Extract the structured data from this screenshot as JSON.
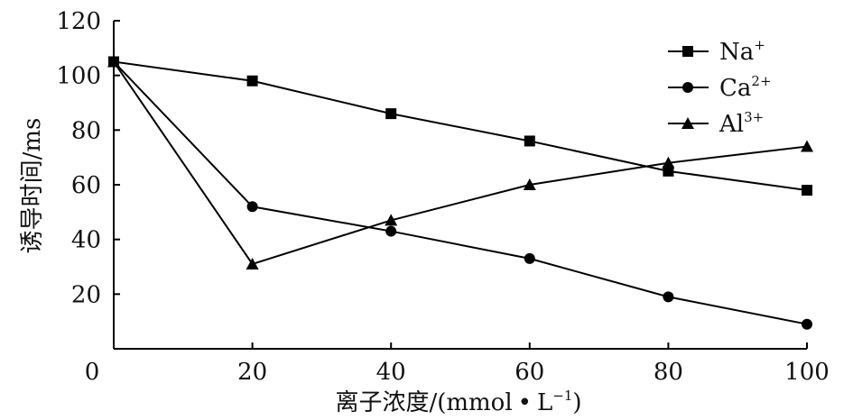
{
  "chart_data": {
    "type": "line",
    "xlabel_main": "离子浓度/(mmol",
    "xlabel_dot": "•",
    "xlabel_unit": "L",
    "xlabel_exp": "−1",
    "xlabel_close": ")",
    "ylabel": "诱导时间/ms",
    "xlim": [
      0,
      100
    ],
    "ylim": [
      0,
      120
    ],
    "x_ticks": [
      0,
      20,
      40,
      60,
      80,
      100
    ],
    "y_ticks": [
      0,
      20,
      40,
      60,
      80,
      100,
      120
    ],
    "grid": false,
    "legend_position": "top-right",
    "series": [
      {
        "name": "Na",
        "sup": "+",
        "marker": "square",
        "color": "#000000",
        "x": [
          0,
          20,
          40,
          60,
          80,
          100
        ],
        "y": [
          105,
          98,
          86,
          76,
          65,
          58
        ]
      },
      {
        "name": "Ca",
        "sup": "2+",
        "marker": "circle",
        "color": "#000000",
        "x": [
          0,
          20,
          40,
          60,
          80,
          100
        ],
        "y": [
          105,
          52,
          43,
          33,
          19,
          9
        ]
      },
      {
        "name": "Al",
        "sup": "3+",
        "marker": "triangle",
        "color": "#000000",
        "x": [
          0,
          20,
          40,
          60,
          80,
          100
        ],
        "y": [
          105,
          31,
          47,
          60,
          68,
          74
        ]
      }
    ]
  }
}
